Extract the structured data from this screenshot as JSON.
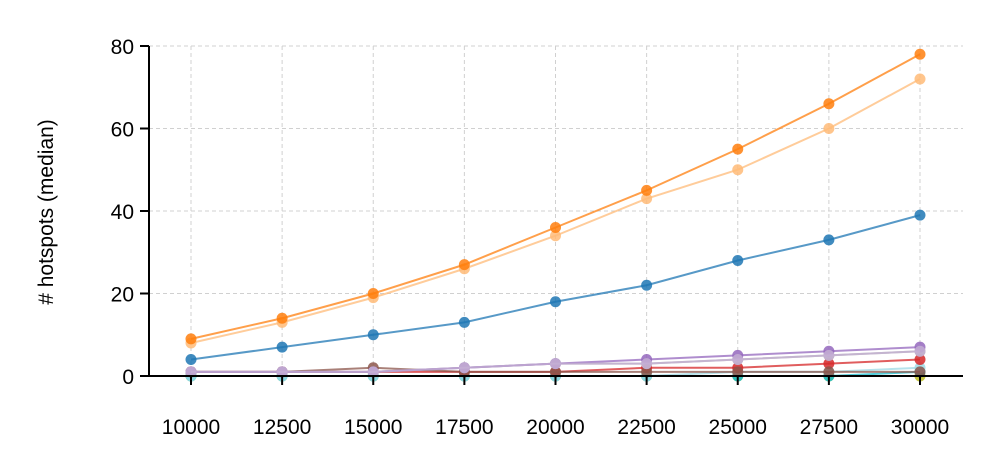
{
  "chart_data": {
    "type": "line",
    "title": "",
    "xlabel": "",
    "ylabel": "# hotspots (median)",
    "x": [
      10000,
      12500,
      15000,
      17500,
      20000,
      22500,
      25000,
      27500,
      30000
    ],
    "x_tick_labels": [
      "10000",
      "12500",
      "15000",
      "17500",
      "20000",
      "22500",
      "25000",
      "27500",
      "30000"
    ],
    "ylim": [
      0,
      80
    ],
    "y_ticks": [
      0,
      20,
      40,
      60,
      80
    ],
    "y_tick_labels": [
      "0",
      "20",
      "40",
      "60",
      "80"
    ],
    "grid": true,
    "legend": "none",
    "series": [
      {
        "color": "#bcbd22",
        "values": [
          0,
          0,
          0,
          0,
          0,
          0,
          0,
          0,
          0
        ]
      },
      {
        "color": "#17becf",
        "values": [
          0,
          0,
          0,
          0,
          0,
          0,
          0,
          0,
          1
        ]
      },
      {
        "color": "#9edae5",
        "values": [
          0,
          0,
          0,
          0,
          0,
          0,
          1,
          1,
          2
        ]
      },
      {
        "color": "#d62728",
        "values": [
          1,
          1,
          1,
          1,
          1,
          2,
          2,
          3,
          4
        ]
      },
      {
        "color": "#8c564b",
        "values": [
          1,
          1,
          2,
          1,
          1,
          1,
          1,
          1,
          1
        ]
      },
      {
        "color": "#aaaaaa",
        "values": [
          1,
          1,
          1,
          2,
          3,
          3,
          4,
          5,
          6
        ]
      },
      {
        "color": "#9467bd",
        "values": [
          1,
          1,
          1,
          2,
          3,
          4,
          5,
          6,
          7
        ]
      },
      {
        "color": "#c5b0d5",
        "values": [
          1,
          1,
          1,
          2,
          3,
          3,
          4,
          5,
          6
        ]
      },
      {
        "color": "#1f77b4",
        "values": [
          4,
          7,
          10,
          13,
          18,
          22,
          28,
          33,
          39
        ]
      },
      {
        "color": "#ffbb78",
        "values": [
          8,
          13,
          19,
          26,
          34,
          43,
          50,
          60,
          72
        ]
      },
      {
        "color": "#ff7f0e",
        "values": [
          9,
          14,
          20,
          27,
          36,
          45,
          55,
          66,
          78
        ]
      }
    ]
  }
}
